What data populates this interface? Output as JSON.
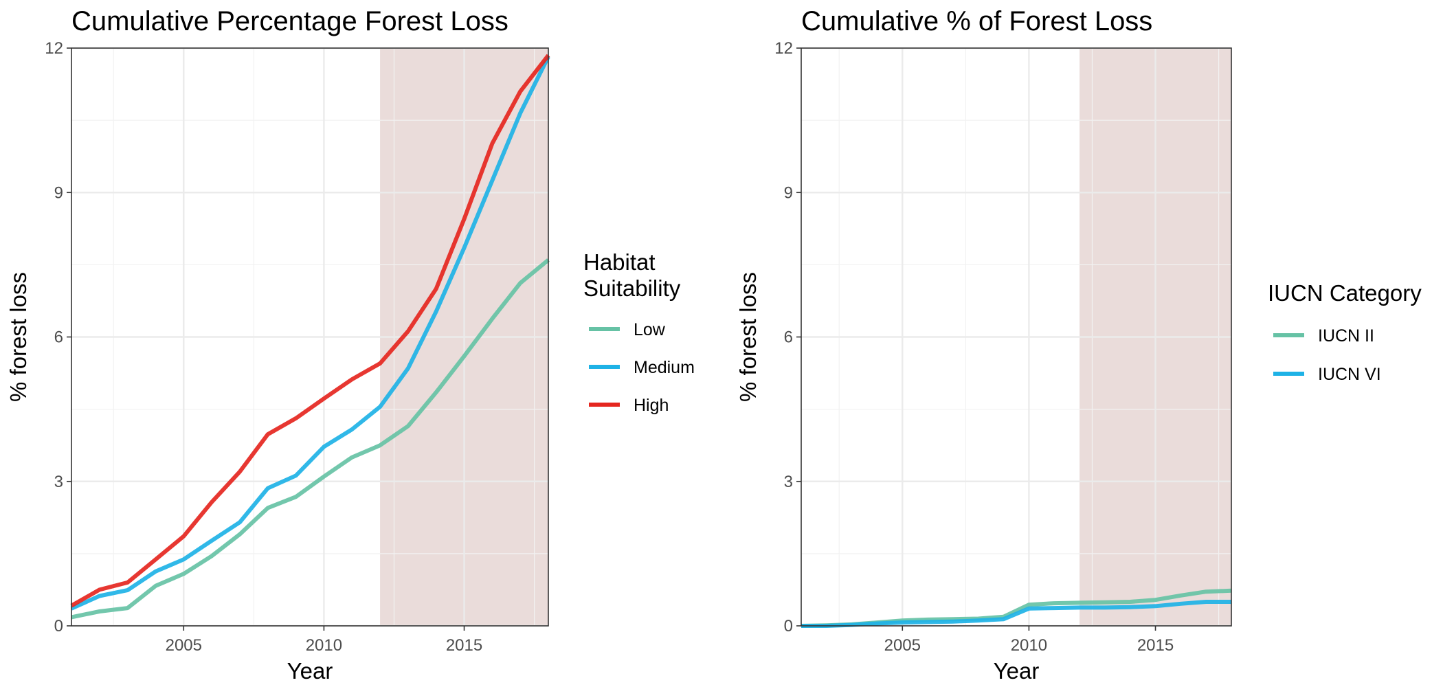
{
  "colors": {
    "low": "#66c2a5",
    "medium": "#1eb2e6",
    "high": "#e5261f",
    "iucn_ii": "#66c2a5",
    "iucn_vi": "#1eb2e6",
    "highlight": "#c9a49e",
    "grid": "#ebebeb",
    "tick_text": "#4d4d4d"
  },
  "chart_data": [
    {
      "type": "line",
      "title": "Cumulative Percentage Forest Loss",
      "xlabel": "Year",
      "ylabel": "% forest loss",
      "xlim": [
        2001,
        2018
      ],
      "ylim": [
        0,
        12
      ],
      "x_ticks": [
        2005,
        2010,
        2015
      ],
      "y_ticks": [
        0,
        3,
        6,
        9,
        12
      ],
      "grid": true,
      "highlight_band": [
        2012,
        2018
      ],
      "legend": {
        "title": "Habitat Suitability",
        "position": "right"
      },
      "x": [
        2001,
        2002,
        2003,
        2004,
        2005,
        2006,
        2007,
        2008,
        2009,
        2010,
        2011,
        2012,
        2013,
        2014,
        2015,
        2016,
        2017,
        2018
      ],
      "series": [
        {
          "name": "Low",
          "color_key": "low",
          "values": [
            0.18,
            0.3,
            0.37,
            0.83,
            1.08,
            1.45,
            1.9,
            2.45,
            2.68,
            3.1,
            3.5,
            3.75,
            4.15,
            4.85,
            5.6,
            6.38,
            7.12,
            7.6
          ]
        },
        {
          "name": "Medium",
          "color_key": "medium",
          "values": [
            0.36,
            0.62,
            0.74,
            1.13,
            1.38,
            1.77,
            2.15,
            2.86,
            3.12,
            3.72,
            4.08,
            4.55,
            5.35,
            6.53,
            7.85,
            9.25,
            10.65,
            11.82
          ]
        },
        {
          "name": "High",
          "color_key": "high",
          "values": [
            0.42,
            0.75,
            0.9,
            1.38,
            1.86,
            2.57,
            3.2,
            3.98,
            4.31,
            4.72,
            5.12,
            5.45,
            6.12,
            7.0,
            8.45,
            10.02,
            11.1,
            11.85
          ]
        }
      ]
    },
    {
      "type": "line",
      "title": "Cumulative % of Forest Loss",
      "xlabel": "Year",
      "ylabel": "% forest loss",
      "xlim": [
        2001,
        2018
      ],
      "ylim": [
        0,
        12
      ],
      "x_ticks": [
        2005,
        2010,
        2015
      ],
      "y_ticks": [
        0,
        3,
        6,
        9,
        12
      ],
      "grid": true,
      "highlight_band": [
        2012,
        2018
      ],
      "legend": {
        "title": "IUCN Category",
        "position": "right"
      },
      "x": [
        2001,
        2002,
        2003,
        2004,
        2005,
        2006,
        2007,
        2008,
        2009,
        2010,
        2011,
        2012,
        2013,
        2014,
        2015,
        2016,
        2017,
        2018
      ],
      "series": [
        {
          "name": "IUCN II",
          "color_key": "iucn_ii",
          "values": [
            0.0,
            0.01,
            0.03,
            0.07,
            0.11,
            0.13,
            0.14,
            0.15,
            0.19,
            0.44,
            0.47,
            0.48,
            0.49,
            0.5,
            0.54,
            0.63,
            0.71,
            0.73
          ]
        },
        {
          "name": "IUCN VI",
          "color_key": "iucn_vi",
          "values": [
            0.0,
            0.0,
            0.02,
            0.05,
            0.07,
            0.08,
            0.09,
            0.11,
            0.14,
            0.36,
            0.37,
            0.38,
            0.38,
            0.39,
            0.41,
            0.46,
            0.5,
            0.5
          ]
        }
      ]
    }
  ]
}
